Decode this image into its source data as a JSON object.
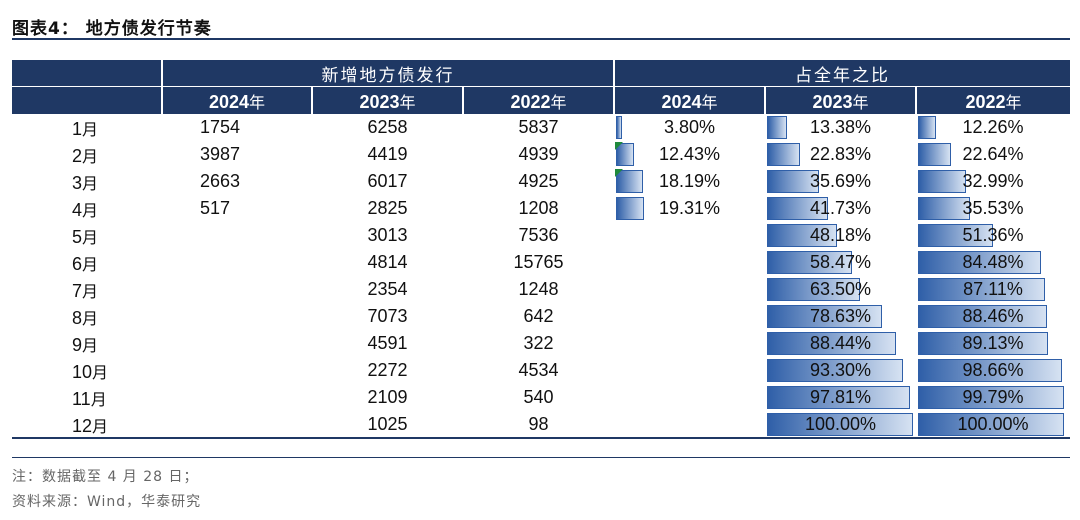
{
  "title": "图表4：  地方债发行节奏",
  "header": {
    "group1": "新增地方债发行",
    "group2": "占全年之比",
    "years": [
      "2024",
      "2023",
      "2022"
    ],
    "year_suffix": "年"
  },
  "rows": [
    {
      "month": "1",
      "v2024": "1754",
      "v2023": "6258",
      "v2022": "5837",
      "p2024": "3.80%",
      "p2023": "13.38%",
      "p2022": "12.26%",
      "f2024": 0.038,
      "f2023": 0.1338,
      "f2022": 0.1226,
      "flag2024": false
    },
    {
      "month": "2",
      "v2024": "3987",
      "v2023": "4419",
      "v2022": "4939",
      "p2024": "12.43%",
      "p2023": "22.83%",
      "p2022": "22.64%",
      "f2024": 0.1243,
      "f2023": 0.2283,
      "f2022": 0.2264,
      "flag2024": true
    },
    {
      "month": "3",
      "v2024": "2663",
      "v2023": "6017",
      "v2022": "4925",
      "p2024": "18.19%",
      "p2023": "35.69%",
      "p2022": "32.99%",
      "f2024": 0.1819,
      "f2023": 0.3569,
      "f2022": 0.3299,
      "flag2024": true
    },
    {
      "month": "4",
      "v2024": "517",
      "v2023": "2825",
      "v2022": "1208",
      "p2024": "19.31%",
      "p2023": "41.73%",
      "p2022": "35.53%",
      "f2024": 0.1931,
      "f2023": 0.4173,
      "f2022": 0.3553,
      "flag2024": false
    },
    {
      "month": "5",
      "v2024": "",
      "v2023": "3013",
      "v2022": "7536",
      "p2024": "",
      "p2023": "48.18%",
      "p2022": "51.36%",
      "f2024": null,
      "f2023": 0.4818,
      "f2022": 0.5136,
      "flag2024": false
    },
    {
      "month": "6",
      "v2024": "",
      "v2023": "4814",
      "v2022": "15765",
      "p2024": "",
      "p2023": "58.47%",
      "p2022": "84.48%",
      "f2024": null,
      "f2023": 0.5847,
      "f2022": 0.8448,
      "flag2024": false
    },
    {
      "month": "7",
      "v2024": "",
      "v2023": "2354",
      "v2022": "1248",
      "p2024": "",
      "p2023": "63.50%",
      "p2022": "87.11%",
      "f2024": null,
      "f2023": 0.635,
      "f2022": 0.8711,
      "flag2024": false
    },
    {
      "month": "8",
      "v2024": "",
      "v2023": "7073",
      "v2022": "642",
      "p2024": "",
      "p2023": "78.63%",
      "p2022": "88.46%",
      "f2024": null,
      "f2023": 0.7863,
      "f2022": 0.8846,
      "flag2024": false
    },
    {
      "month": "9",
      "v2024": "",
      "v2023": "4591",
      "v2022": "322",
      "p2024": "",
      "p2023": "88.44%",
      "p2022": "89.13%",
      "f2024": null,
      "f2023": 0.8844,
      "f2022": 0.8913,
      "flag2024": false
    },
    {
      "month": "10",
      "v2024": "",
      "v2023": "2272",
      "v2022": "4534",
      "p2024": "",
      "p2023": "93.30%",
      "p2022": "98.66%",
      "f2024": null,
      "f2023": 0.933,
      "f2022": 0.9866,
      "flag2024": false
    },
    {
      "month": "11",
      "v2024": "",
      "v2023": "2109",
      "v2022": "540",
      "p2024": "",
      "p2023": "97.81%",
      "p2022": "99.79%",
      "f2024": null,
      "f2023": 0.9781,
      "f2022": 0.9979,
      "flag2024": false
    },
    {
      "month": "12",
      "v2024": "",
      "v2023": "1025",
      "v2022": "98",
      "p2024": "",
      "p2023": "100.00%",
      "p2022": "100.00%",
      "f2024": null,
      "f2023": 1.0,
      "f2022": 1.0,
      "flag2024": false
    }
  ],
  "month_suffix": "月",
  "bar_colors": {
    "dark": "#2f5fa8",
    "light": "#d6e2f2",
    "flag": "#1f8a3c",
    "header_bg": "#1f3864"
  },
  "footer": {
    "note": "注：数据截至 4 月 28 日；",
    "source": "资料来源：Wind，华泰研究"
  }
}
